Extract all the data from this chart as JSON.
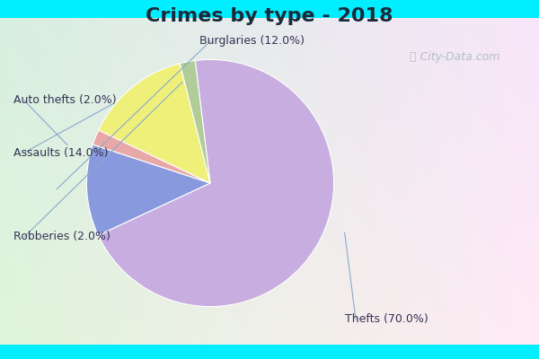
{
  "title": "Crimes by type - 2018",
  "labels": [
    "Thefts",
    "Burglaries",
    "Auto thefts",
    "Assaults",
    "Robberies"
  ],
  "values": [
    70.0,
    12.0,
    2.0,
    14.0,
    2.0
  ],
  "colors": [
    "#c8aee0",
    "#8899dd",
    "#e8a8a8",
    "#eef07a",
    "#b0cc99"
  ],
  "label_texts": [
    "Thefts (70.0%)",
    "Burglaries (12.0%)",
    "Auto thefts (2.0%)",
    "Assaults (14.0%)",
    "Robberies (2.0%)"
  ],
  "bg_cyan": "#00eeff",
  "bg_inner_top_left": "#c8ecd0",
  "bg_inner_bottom_right": "#dde8f0",
  "title_fontsize": 16,
  "label_fontsize": 9,
  "startangle": 97,
  "watermark": "City-Data.com",
  "label_color": "#333355"
}
